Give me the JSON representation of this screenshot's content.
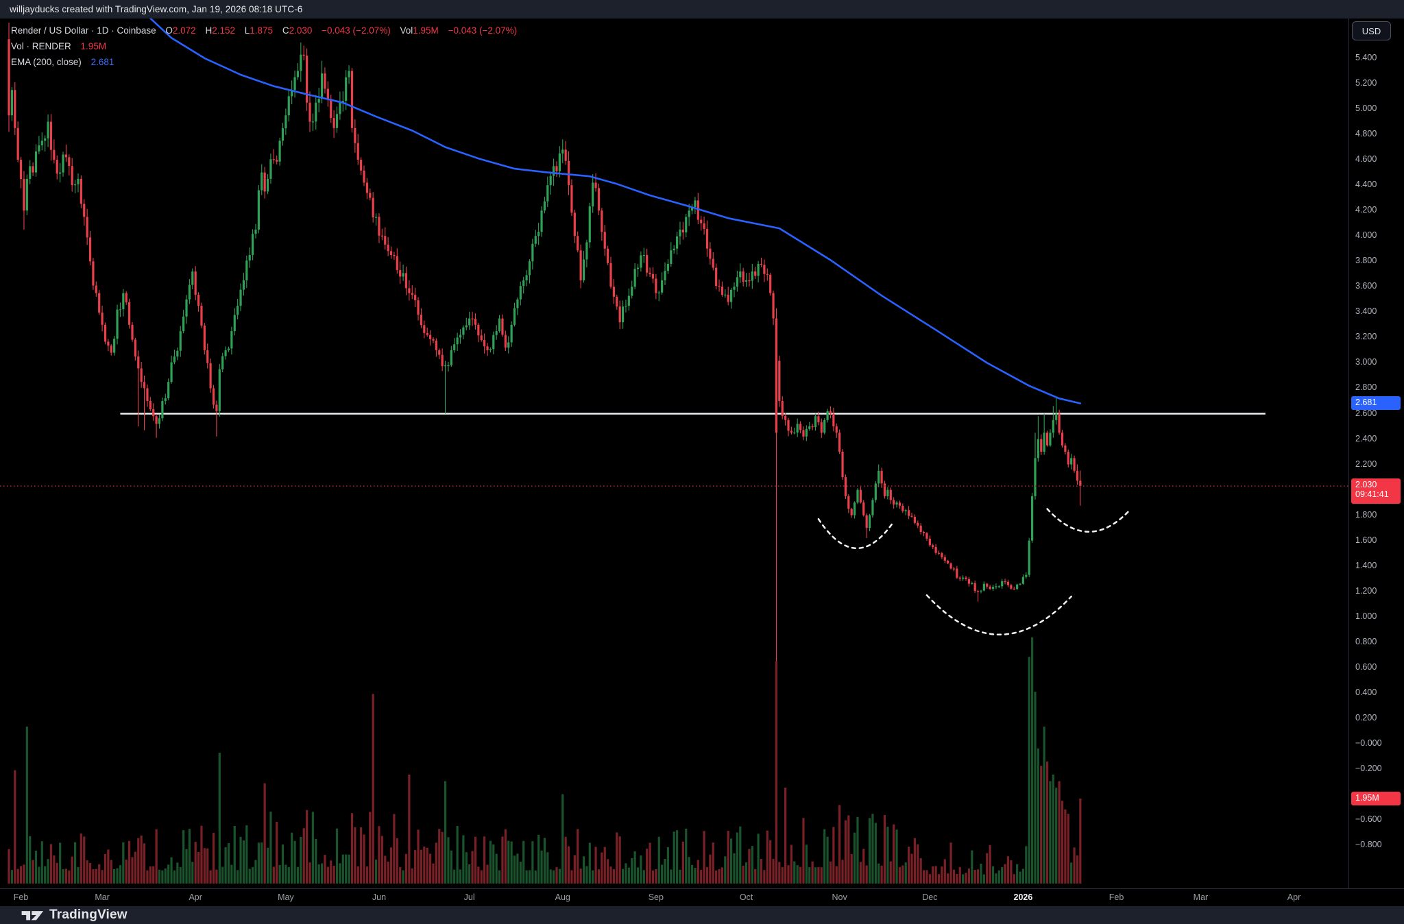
{
  "header": {
    "watermark": "willjayducks created with TradingView.com, Jan 19, 2026 08:18 UTC-6"
  },
  "legend": {
    "title": "Render / US Dollar · 1D · Coinbase",
    "ohlc": [
      {
        "label": "O",
        "value": "2.072"
      },
      {
        "label": "H",
        "value": "2.152"
      },
      {
        "label": "L",
        "value": "1.875"
      },
      {
        "label": "C",
        "value": "2.030"
      }
    ],
    "change": "−0.043 (−2.07%)",
    "vol_label": "Vol",
    "vol_value": "1.95M",
    "change2": "−0.043 (−2.07%)",
    "row2_label": "Vol · RENDER",
    "row2_value": "1.95M",
    "row3_label": "EMA (200, close)",
    "row3_value": "2.681"
  },
  "axis": {
    "currency_button": "USD",
    "price_labels": [
      {
        "t": "5.400",
        "p": 5.4
      },
      {
        "t": "5.200",
        "p": 5.2
      },
      {
        "t": "5.000",
        "p": 5.0
      },
      {
        "t": "4.800",
        "p": 4.8
      },
      {
        "t": "4.600",
        "p": 4.6
      },
      {
        "t": "4.400",
        "p": 4.4
      },
      {
        "t": "4.200",
        "p": 4.2
      },
      {
        "t": "4.000",
        "p": 4.0
      },
      {
        "t": "3.800",
        "p": 3.8
      },
      {
        "t": "3.600",
        "p": 3.6
      },
      {
        "t": "3.400",
        "p": 3.4
      },
      {
        "t": "3.200",
        "p": 3.2
      },
      {
        "t": "3.000",
        "p": 3.0
      },
      {
        "t": "2.800",
        "p": 2.8
      },
      {
        "t": "2.600",
        "p": 2.6
      },
      {
        "t": "2.400",
        "p": 2.4
      },
      {
        "t": "2.200",
        "p": 2.2
      },
      {
        "t": "1.800",
        "p": 1.8
      },
      {
        "t": "1.600",
        "p": 1.6
      },
      {
        "t": "1.400",
        "p": 1.4
      },
      {
        "t": "1.200",
        "p": 1.2
      },
      {
        "t": "1.000",
        "p": 1.0
      },
      {
        "t": "0.800",
        "p": 0.8
      },
      {
        "t": "0.600",
        "p": 0.6
      },
      {
        "t": "0.400",
        "p": 0.4
      },
      {
        "t": "0.200",
        "p": 0.2
      },
      {
        "t": "−0.000",
        "p": 0.0
      },
      {
        "t": "−0.200",
        "p": -0.2
      },
      {
        "t": "−0.600",
        "p": -0.6
      },
      {
        "t": "−0.800",
        "p": -0.8
      }
    ],
    "ema_tag": {
      "text": "2.681",
      "price": 2.681,
      "color": "#2962ff"
    },
    "last_tag": {
      "text": "2.030",
      "time": "09:41:41",
      "price": 2.03,
      "color": "#f23645"
    },
    "volume_tag": {
      "text": "1.95M",
      "value": 1.95,
      "color": "#f23645"
    }
  },
  "timeline": {
    "months": [
      {
        "label": "Feb",
        "day": 4
      },
      {
        "label": "Mar",
        "day": 31
      },
      {
        "label": "Apr",
        "day": 62
      },
      {
        "label": "May",
        "day": 92
      },
      {
        "label": "Jun",
        "day": 123
      },
      {
        "label": "Jul",
        "day": 153
      },
      {
        "label": "Aug",
        "day": 184
      },
      {
        "label": "Sep",
        "day": 215
      },
      {
        "label": "Oct",
        "day": 245
      },
      {
        "label": "Nov",
        "day": 276
      },
      {
        "label": "Dec",
        "day": 306
      },
      {
        "label": "2026",
        "day": 337,
        "highlight": true
      },
      {
        "label": "Feb",
        "day": 368
      },
      {
        "label": "Mar",
        "day": 396
      },
      {
        "label": "Apr",
        "day": 427
      }
    ]
  },
  "footer": {
    "brand": "TradingView"
  },
  "chart_data": {
    "type": "candlestick",
    "title": "Render / US Dollar · 1D · Coinbase",
    "symbol": "RENDER/USD",
    "interval": "1D",
    "ylim": [
      -0.8,
      5.4
    ],
    "last_candle": {
      "open": 2.072,
      "high": 2.152,
      "low": 1.875,
      "close": 2.03
    },
    "ema_200_last": 2.681,
    "colors": {
      "up": "#2fa257",
      "down": "#e9404b",
      "ema": "#2962ff",
      "support": "#eceff2",
      "last_price_line": "#b22833",
      "vol_up": "#2fa257",
      "vol_down": "#e9404b"
    },
    "support_line": {
      "price": 2.6,
      "day_start": 37,
      "day_end": 417.5
    },
    "last_price_line": {
      "price": 2.03
    },
    "anchors": [
      [
        0,
        4.95
      ],
      [
        1,
        5.15
      ],
      [
        2,
        4.85
      ],
      [
        3,
        4.6
      ],
      [
        5,
        4.2
      ],
      [
        6,
        4.45
      ],
      [
        8,
        4.5
      ],
      [
        11,
        4.75
      ],
      [
        13,
        4.9
      ],
      [
        15,
        4.6
      ],
      [
        17,
        4.5
      ],
      [
        19,
        4.62
      ],
      [
        21,
        4.4
      ],
      [
        23,
        4.45
      ],
      [
        25,
        4.15
      ],
      [
        27,
        3.8
      ],
      [
        29,
        3.55
      ],
      [
        31,
        3.3
      ],
      [
        34,
        3.08
      ],
      [
        36,
        3.42
      ],
      [
        38,
        3.55
      ],
      [
        40,
        3.3
      ],
      [
        42,
        3.05
      ],
      [
        44,
        2.85
      ],
      [
        46,
        2.7
      ],
      [
        48,
        2.58
      ],
      [
        49,
        2.52
      ],
      [
        51,
        2.7
      ],
      [
        53,
        2.85
      ],
      [
        55,
        3.05
      ],
      [
        57,
        3.25
      ],
      [
        59,
        3.5
      ],
      [
        61,
        3.72
      ],
      [
        63,
        3.45
      ],
      [
        65,
        3.1
      ],
      [
        67,
        2.8
      ],
      [
        69,
        2.62
      ],
      [
        70,
        2.95
      ],
      [
        72,
        3.1
      ],
      [
        74,
        3.25
      ],
      [
        76,
        3.45
      ],
      [
        78,
        3.65
      ],
      [
        80,
        3.85
      ],
      [
        82,
        4.05
      ],
      [
        84,
        4.5
      ],
      [
        85,
        4.35
      ],
      [
        86,
        4.45
      ],
      [
        88,
        4.6
      ],
      [
        90,
        4.75
      ],
      [
        92,
        4.95
      ],
      [
        94,
        5.15
      ],
      [
        96,
        5.3
      ],
      [
        98,
        5.42
      ],
      [
        99,
        5.05
      ],
      [
        100,
        4.9
      ],
      [
        102,
        5.05
      ],
      [
        104,
        5.28
      ],
      [
        106,
        5.08
      ],
      [
        108,
        4.85
      ],
      [
        110,
        5.05
      ],
      [
        112,
        5.25
      ],
      [
        113,
        5.3
      ],
      [
        114,
        4.85
      ],
      [
        116,
        4.6
      ],
      [
        118,
        4.42
      ],
      [
        120,
        4.3
      ],
      [
        122,
        4.15
      ],
      [
        124,
        4.0
      ],
      [
        127,
        3.85
      ],
      [
        130,
        3.68
      ],
      [
        133,
        3.55
      ],
      [
        136,
        3.38
      ],
      [
        139,
        3.22
      ],
      [
        142,
        3.1
      ],
      [
        145,
        2.98
      ],
      [
        147,
        3.1
      ],
      [
        149,
        3.2
      ],
      [
        151,
        3.28
      ],
      [
        153,
        3.35
      ],
      [
        155,
        3.3
      ],
      [
        157,
        3.18
      ],
      [
        159,
        3.1
      ],
      [
        161,
        3.22
      ],
      [
        163,
        3.35
      ],
      [
        165,
        3.12
      ],
      [
        167,
        3.3
      ],
      [
        169,
        3.5
      ],
      [
        171,
        3.65
      ],
      [
        173,
        3.8
      ],
      [
        175,
        4.0
      ],
      [
        177,
        4.2
      ],
      [
        179,
        4.4
      ],
      [
        181,
        4.55
      ],
      [
        183,
        4.65
      ],
      [
        184,
        4.68
      ],
      [
        186,
        4.4
      ],
      [
        188,
        4.0
      ],
      [
        190,
        3.65
      ],
      [
        192,
        3.95
      ],
      [
        194,
        4.42
      ],
      [
        196,
        4.2
      ],
      [
        198,
        3.9
      ],
      [
        200,
        3.6
      ],
      [
        203,
        3.32
      ],
      [
        205,
        3.45
      ],
      [
        207,
        3.6
      ],
      [
        209,
        3.75
      ],
      [
        211,
        3.85
      ],
      [
        213,
        3.7
      ],
      [
        215,
        3.55
      ],
      [
        217,
        3.65
      ],
      [
        219,
        3.78
      ],
      [
        221,
        3.9
      ],
      [
        223,
        4.05
      ],
      [
        226,
        4.2
      ],
      [
        228,
        4.28
      ],
      [
        230,
        4.1
      ],
      [
        232,
        3.9
      ],
      [
        234,
        3.75
      ],
      [
        236,
        3.6
      ],
      [
        239,
        3.48
      ],
      [
        241,
        3.6
      ],
      [
        243,
        3.72
      ],
      [
        245,
        3.65
      ],
      [
        247,
        3.72
      ],
      [
        249,
        3.78
      ],
      [
        251,
        3.7
      ],
      [
        253,
        3.55
      ],
      [
        254,
        3.35
      ],
      [
        256,
        2.7
      ],
      [
        258,
        2.55
      ],
      [
        260,
        2.45
      ],
      [
        262,
        2.52
      ],
      [
        264,
        2.42
      ],
      [
        266,
        2.5
      ],
      [
        268,
        2.58
      ],
      [
        270,
        2.45
      ],
      [
        271,
        2.55
      ],
      [
        273,
        2.6
      ],
      [
        274,
        2.5
      ],
      [
        275,
        2.45
      ],
      [
        276,
        2.3
      ],
      [
        277,
        2.1
      ],
      [
        278,
        1.95
      ],
      [
        279,
        1.85
      ],
      [
        280,
        1.8
      ],
      [
        281,
        1.9
      ],
      [
        282,
        2.0
      ],
      [
        283,
        1.9
      ],
      [
        284,
        1.8
      ],
      [
        285,
        1.7
      ],
      [
        286,
        1.8
      ],
      [
        287,
        1.92
      ],
      [
        288,
        2.05
      ],
      [
        289,
        2.15
      ],
      [
        290,
        2.05
      ],
      [
        291,
        1.95
      ],
      [
        292,
        2.0
      ],
      [
        293,
        1.92
      ],
      [
        295,
        1.9
      ],
      [
        298,
        1.84
      ],
      [
        301,
        1.74
      ],
      [
        304,
        1.66
      ],
      [
        307,
        1.55
      ],
      [
        310,
        1.47
      ],
      [
        313,
        1.38
      ],
      [
        316,
        1.3
      ],
      [
        319,
        1.26
      ],
      [
        322,
        1.2
      ],
      [
        324,
        1.26
      ],
      [
        326,
        1.22
      ],
      [
        328,
        1.24
      ],
      [
        330,
        1.28
      ],
      [
        332,
        1.25
      ],
      [
        334,
        1.22
      ],
      [
        336,
        1.26
      ],
      [
        338,
        1.33
      ],
      [
        339,
        1.6
      ],
      [
        340,
        1.95
      ],
      [
        341,
        2.25
      ],
      [
        342,
        2.4
      ],
      [
        343,
        2.3
      ],
      [
        344,
        2.45
      ],
      [
        345,
        2.35
      ],
      [
        346,
        2.45
      ],
      [
        347,
        2.55
      ],
      [
        348,
        2.6
      ],
      [
        349,
        2.45
      ],
      [
        350,
        2.35
      ],
      [
        351,
        2.3
      ],
      [
        352,
        2.2
      ],
      [
        353,
        2.25
      ],
      [
        354,
        2.15
      ],
      [
        355,
        2.072
      ],
      [
        356,
        2.03
      ]
    ],
    "specials": {
      "0": {
        "o": 5.55,
        "h": 5.68,
        "l": 4.82,
        "c": 4.95
      },
      "255": {
        "o": 3.35,
        "h": 3.43,
        "l": 0.65,
        "c": 2.45
      },
      "355": {
        "o": 2.15,
        "h": 2.2,
        "l": 2.04,
        "c": 2.072
      },
      "356": {
        "o": 2.072,
        "h": 2.152,
        "l": 1.875,
        "c": 2.03
      }
    },
    "wick_lows": {
      "5": 4.05,
      "43": 2.5,
      "45": 2.47,
      "49": 2.41,
      "69": 2.42,
      "145": 2.6,
      "285": 1.62,
      "322": 1.12
    },
    "wick_highs": {
      "98": 5.5,
      "104": 5.38,
      "289": 2.2,
      "341": 2.45,
      "342": 2.58,
      "344": 2.6,
      "347": 2.66,
      "348": 2.73
    },
    "ema_points": [
      [
        44,
        5.78
      ],
      [
        54,
        5.56
      ],
      [
        65,
        5.4
      ],
      [
        77,
        5.27
      ],
      [
        88,
        5.18
      ],
      [
        100,
        5.11
      ],
      [
        111,
        5.05
      ],
      [
        122,
        4.94
      ],
      [
        134,
        4.83
      ],
      [
        145,
        4.7
      ],
      [
        156,
        4.61
      ],
      [
        168,
        4.53
      ],
      [
        179,
        4.5
      ],
      [
        193,
        4.47
      ],
      [
        202,
        4.41
      ],
      [
        213,
        4.32
      ],
      [
        225,
        4.24
      ],
      [
        239,
        4.14
      ],
      [
        256,
        4.06
      ],
      [
        273,
        3.81
      ],
      [
        290,
        3.53
      ],
      [
        308,
        3.26
      ],
      [
        325,
        3.0
      ],
      [
        339,
        2.82
      ],
      [
        349,
        2.72
      ],
      [
        356,
        2.681
      ]
    ],
    "arcs": [
      {
        "d1": 269,
        "p1": 1.77,
        "d2": 294,
        "p2": 1.75,
        "apex": 1.54
      },
      {
        "d1": 305,
        "p1": 1.17,
        "d2": 353,
        "p2": 1.16,
        "apex": 0.86
      },
      {
        "d1": 345,
        "p1": 1.85,
        "d2": 372,
        "p2": 1.83,
        "apex": 1.67
      }
    ],
    "volume_unit": "M",
    "volume_spikes": {
      "2": 2.6,
      "6": 3.6,
      "70": 3.0,
      "85": 2.3,
      "121": 4.35,
      "133": 2.5,
      "145": 2.35,
      "184": 2.05,
      "255": 5.1,
      "258": 2.2,
      "276": 1.8,
      "287": 1.6,
      "339": 5.2,
      "340": 5.65,
      "341": 4.4,
      "342": 3.1,
      "343": 2.7,
      "344": 3.6,
      "345": 2.8,
      "346": 2.35,
      "347": 2.5,
      "348": 2.2,
      "349": 2.35,
      "350": 1.9,
      "351": 1.7,
      "352": 1.6,
      "356": 1.95
    }
  }
}
